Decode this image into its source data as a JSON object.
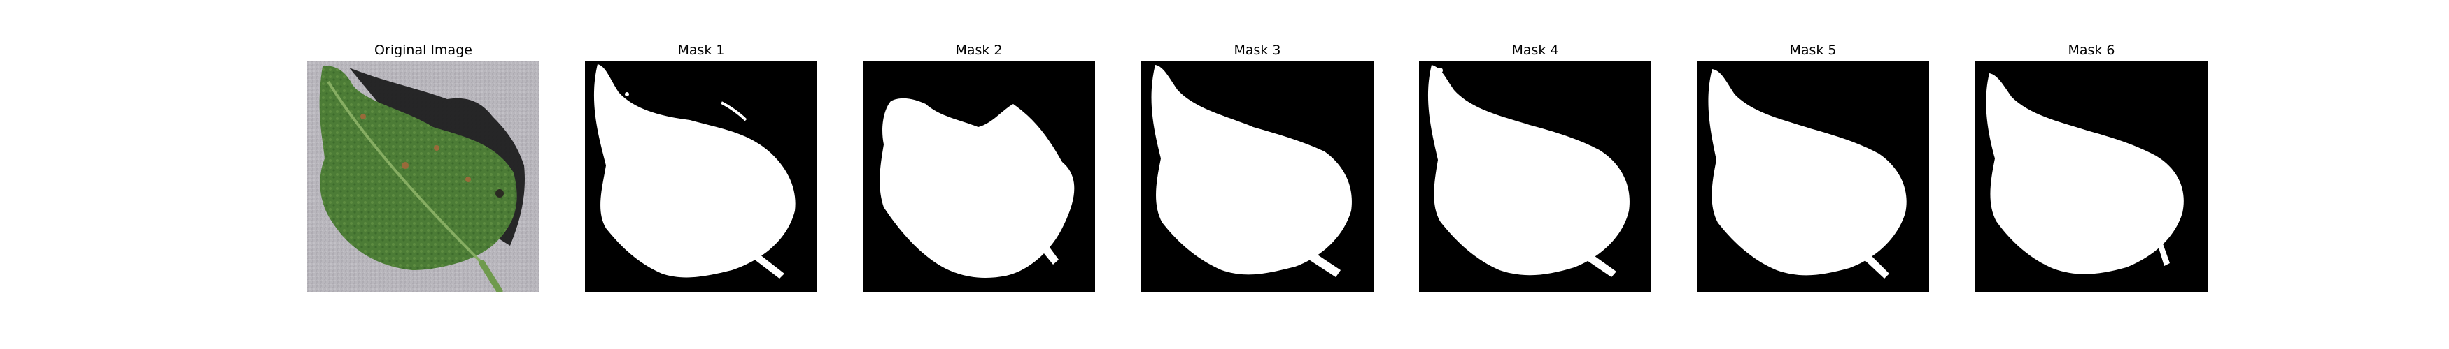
{
  "figure": {
    "background_color": "#ffffff",
    "panels": [
      {
        "title": "Original Image",
        "kind": "photo"
      },
      {
        "title": "Mask 1",
        "kind": "mask"
      },
      {
        "title": "Mask 2",
        "kind": "mask"
      },
      {
        "title": "Mask 3",
        "kind": "mask"
      },
      {
        "title": "Mask 4",
        "kind": "mask"
      },
      {
        "title": "Mask 5",
        "kind": "mask"
      },
      {
        "title": "Mask 6",
        "kind": "mask"
      }
    ]
  },
  "colors": {
    "mask_foreground": "#ffffff",
    "mask_background": "#000000",
    "photo_background": "#b9b7bd",
    "leaf_dark": "#2f5a25",
    "leaf_mid": "#4c7c36",
    "leaf_light": "#7fa65a",
    "shadow": "#1d1d1f",
    "spot": "#9a6a3a"
  }
}
